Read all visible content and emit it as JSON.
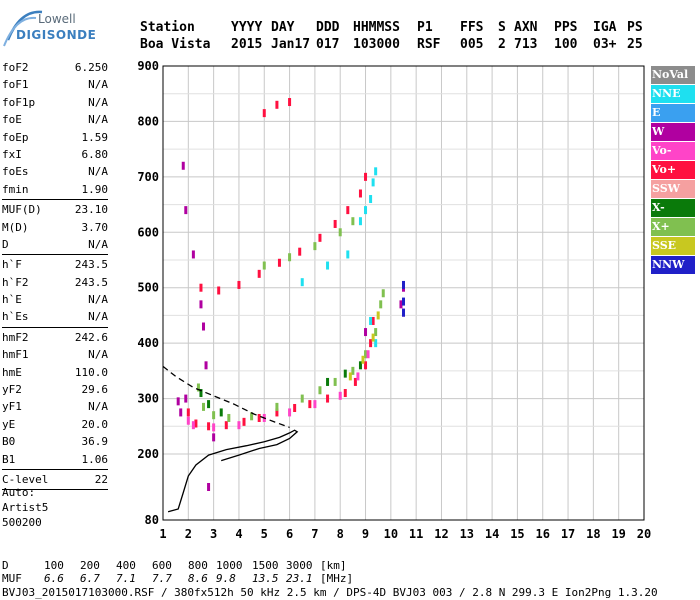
{
  "logo": {
    "line1": "Lowell",
    "line2": "DIGISONDE"
  },
  "header": {
    "row1": [
      "Station",
      "YYYY",
      "DAY",
      "DDD",
      "HHMMSS",
      "P1",
      "FFS",
      "S",
      "AXN",
      "PPS",
      "IGA",
      "PS"
    ],
    "row2": [
      "Boa Vista",
      "2015",
      "Jan17",
      "017",
      "103000",
      "RSF",
      "005",
      "2",
      "713",
      "100",
      "03+",
      "25"
    ]
  },
  "params": [
    {
      "name": "foF2",
      "value": "6.250"
    },
    {
      "name": "foF1",
      "value": "N/A"
    },
    {
      "name": "foF1p",
      "value": "N/A"
    },
    {
      "name": "foE",
      "value": "N/A"
    },
    {
      "name": "foEp",
      "value": "1.59"
    },
    {
      "name": "fxI",
      "value": "6.80"
    },
    {
      "name": "foEs",
      "value": "N/A"
    },
    {
      "name": "fmin",
      "value": "1.90",
      "sep": true
    },
    {
      "name": "MUF(D)",
      "value": "23.10"
    },
    {
      "name": "M(D)",
      "value": "3.70"
    },
    {
      "name": "D",
      "value": "N/A",
      "sep": true
    },
    {
      "name": "h`F",
      "value": "243.5"
    },
    {
      "name": "h`F2",
      "value": "243.5"
    },
    {
      "name": "h`E",
      "value": "N/A"
    },
    {
      "name": "h`Es",
      "value": "N/A",
      "sep": true
    },
    {
      "name": "hmF2",
      "value": "242.6"
    },
    {
      "name": "hmF1",
      "value": "N/A"
    },
    {
      "name": "hmE",
      "value": "110.0"
    },
    {
      "name": "yF2",
      "value": "29.6"
    },
    {
      "name": "yF1",
      "value": "N/A"
    },
    {
      "name": "yE",
      "value": "20.0"
    },
    {
      "name": "B0",
      "value": "36.9"
    },
    {
      "name": "B1",
      "value": "1.06",
      "sep": true
    },
    {
      "name": "C-level",
      "value": "22",
      "sep": true
    }
  ],
  "auto": {
    "line1": "Auto:",
    "line2": "Artist5",
    "line3": "500200"
  },
  "footer": {
    "d_label": "D",
    "d_values": [
      "100",
      "200",
      "400",
      "600",
      "800",
      "1000",
      "1500",
      "3000"
    ],
    "d_unit": "[km]",
    "muf_label": "MUF",
    "muf_values": [
      "6.6",
      "6.7",
      "7.1",
      "7.7",
      "8.6",
      "9.8",
      "13.5",
      "23.1"
    ],
    "muf_unit": "[MHz]",
    "info": "BVJ03_2015017103000.RSF / 380fx512h 50 kHz 2.5 km / DPS-4D BVJ03 003 / 2.8 N 299.3 E Ion2Png 1.3.20"
  },
  "legend": [
    {
      "label": "NoVal",
      "color": "#8c8c8c"
    },
    {
      "label": "NNE",
      "color": "#1ee0f0"
    },
    {
      "label": "E",
      "color": "#3aa0f0"
    },
    {
      "label": "W",
      "color": "#b000a0"
    },
    {
      "label": "Vo-",
      "color": "#ff44c8"
    },
    {
      "label": "Vo+",
      "color": "#ff1040"
    },
    {
      "label": "SSW",
      "color": "#f5a0a0"
    },
    {
      "label": "X-",
      "color": "#0a7a0a"
    },
    {
      "label": "X+",
      "color": "#80c050"
    },
    {
      "label": "SSE",
      "color": "#c8c820"
    },
    {
      "label": "NNW",
      "color": "#2020c8"
    }
  ],
  "chart_data": {
    "type": "scatter",
    "xlim": [
      1,
      20
    ],
    "ylim": [
      80,
      900
    ],
    "x_ticks": [
      1,
      2,
      3,
      4,
      5,
      6,
      7,
      8,
      9,
      10,
      11,
      12,
      13,
      14,
      15,
      16,
      17,
      18,
      19,
      20
    ],
    "y_ticks": [
      80,
      200,
      300,
      400,
      500,
      600,
      700,
      800,
      900
    ],
    "grid": true,
    "legend_position": "right",
    "series": [
      {
        "name": "Vo+",
        "color": "#ff1040",
        "points": [
          [
            2.0,
            275
          ],
          [
            2.3,
            255
          ],
          [
            2.8,
            250
          ],
          [
            3.5,
            252
          ],
          [
            4.2,
            258
          ],
          [
            4.8,
            265
          ],
          [
            5.5,
            275
          ],
          [
            6.2,
            283
          ],
          [
            6.8,
            290
          ],
          [
            7.5,
            300
          ],
          [
            8.2,
            310
          ],
          [
            8.6,
            330
          ],
          [
            9.0,
            360
          ],
          [
            9.2,
            400
          ],
          [
            9.3,
            440
          ],
          [
            2.5,
            500
          ],
          [
            3.2,
            495
          ],
          [
            4.0,
            505
          ],
          [
            4.8,
            525
          ],
          [
            5.6,
            545
          ],
          [
            6.4,
            565
          ],
          [
            7.2,
            590
          ],
          [
            7.8,
            615
          ],
          [
            8.3,
            640
          ],
          [
            8.8,
            670
          ],
          [
            9.0,
            700
          ],
          [
            5.0,
            815
          ],
          [
            5.5,
            830
          ],
          [
            6.0,
            835
          ]
        ]
      },
      {
        "name": "X+",
        "color": "#80c050",
        "points": [
          [
            2.4,
            320
          ],
          [
            2.6,
            285
          ],
          [
            3.0,
            270
          ],
          [
            3.6,
            265
          ],
          [
            4.5,
            268
          ],
          [
            5.5,
            285
          ],
          [
            6.5,
            300
          ],
          [
            7.2,
            315
          ],
          [
            7.8,
            330
          ],
          [
            8.5,
            350
          ],
          [
            9.0,
            380
          ],
          [
            9.4,
            420
          ],
          [
            9.6,
            470
          ],
          [
            9.7,
            490
          ],
          [
            5.0,
            540
          ],
          [
            6.0,
            555
          ],
          [
            7.0,
            575
          ],
          [
            8.0,
            600
          ],
          [
            8.5,
            620
          ]
        ]
      },
      {
        "name": "NNE",
        "color": "#1ee0f0",
        "points": [
          [
            8.8,
            620
          ],
          [
            9.0,
            640
          ],
          [
            9.2,
            660
          ],
          [
            9.3,
            690
          ],
          [
            9.4,
            710
          ],
          [
            6.5,
            510
          ],
          [
            7.5,
            540
          ],
          [
            8.3,
            560
          ],
          [
            9.2,
            440
          ],
          [
            9.4,
            400
          ]
        ]
      },
      {
        "name": "W",
        "color": "#b000a0",
        "points": [
          [
            1.8,
            720
          ],
          [
            1.9,
            640
          ],
          [
            2.2,
            560
          ],
          [
            2.5,
            470
          ],
          [
            2.6,
            430
          ],
          [
            2.7,
            360
          ],
          [
            1.6,
            295
          ],
          [
            1.7,
            275
          ],
          [
            1.9,
            300
          ],
          [
            9.0,
            420
          ],
          [
            10.4,
            470
          ],
          [
            10.5,
            500
          ],
          [
            10.5,
            455
          ],
          [
            3.0,
            230
          ],
          [
            2.8,
            140
          ]
        ]
      },
      {
        "name": "Vo-",
        "color": "#ff44c8",
        "points": [
          [
            2.0,
            260
          ],
          [
            2.2,
            252
          ],
          [
            3.0,
            248
          ],
          [
            4.0,
            252
          ],
          [
            5.0,
            265
          ],
          [
            6.0,
            275
          ],
          [
            7.0,
            290
          ],
          [
            8.0,
            305
          ],
          [
            8.7,
            340
          ],
          [
            9.1,
            380
          ]
        ]
      },
      {
        "name": "X-",
        "color": "#0a7a0a",
        "points": [
          [
            2.5,
            310
          ],
          [
            2.8,
            290
          ],
          [
            3.3,
            275
          ],
          [
            7.5,
            330
          ],
          [
            8.2,
            345
          ],
          [
            8.8,
            360
          ]
        ]
      },
      {
        "name": "SSE",
        "color": "#c8c820",
        "points": [
          [
            8.4,
            340
          ],
          [
            8.9,
            370
          ],
          [
            9.3,
            410
          ],
          [
            9.5,
            450
          ]
        ]
      },
      {
        "name": "NNW",
        "color": "#2020c8",
        "points": [
          [
            10.5,
            455
          ],
          [
            10.5,
            505
          ],
          [
            10.5,
            475
          ]
        ]
      }
    ],
    "lines": [
      {
        "style": "solid",
        "color": "#000000",
        "points": [
          [
            1.2,
            95
          ],
          [
            1.6,
            100
          ],
          [
            1.8,
            130
          ],
          [
            2.0,
            160
          ],
          [
            2.3,
            180
          ],
          [
            2.8,
            198
          ],
          [
            3.5,
            208
          ],
          [
            4.3,
            215
          ],
          [
            5.0,
            222
          ],
          [
            5.6,
            230
          ],
          [
            6.0,
            238
          ],
          [
            6.2,
            243
          ],
          [
            6.3,
            240
          ],
          [
            6.0,
            228
          ],
          [
            5.5,
            217
          ],
          [
            4.8,
            210
          ],
          [
            4.0,
            198
          ],
          [
            3.3,
            188
          ]
        ]
      },
      {
        "style": "dashed",
        "color": "#000000",
        "points": [
          [
            1.0,
            358
          ],
          [
            1.5,
            340
          ],
          [
            2.2,
            320
          ],
          [
            3.0,
            305
          ],
          [
            3.8,
            290
          ],
          [
            4.6,
            272
          ],
          [
            5.4,
            258
          ],
          [
            6.0,
            248
          ]
        ]
      }
    ]
  }
}
